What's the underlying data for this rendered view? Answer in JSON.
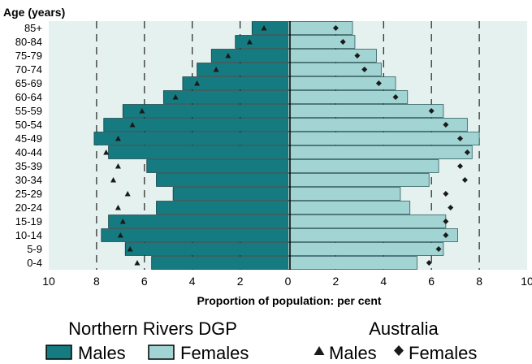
{
  "chart_data": {
    "type": "bar",
    "orientation": "horizontal-population-pyramid",
    "y_axis_title": "Age (years)",
    "xlabel": "Proportion of population: per cent",
    "xlim": [
      -10,
      10
    ],
    "x_ticks": [
      -10,
      -8,
      -6,
      -4,
      -2,
      0,
      2,
      4,
      6,
      8,
      10
    ],
    "x_tick_labels": [
      "10",
      "8",
      "6",
      "4",
      "2",
      "0",
      "2",
      "4",
      "6",
      "8",
      "10"
    ],
    "grid_lines_at": [
      -8,
      -6,
      -4,
      -2,
      2,
      4,
      6,
      8
    ],
    "categories": [
      "85+",
      "80-84",
      "75-79",
      "70-74",
      "65-69",
      "60-64",
      "55-59",
      "50-54",
      "45-49",
      "40-44",
      "35-39",
      "30-34",
      "25-29",
      "20-24",
      "15-19",
      "10-14",
      "5-9",
      "0-4"
    ],
    "series": [
      {
        "name": "Males",
        "group": "Northern Rivers DGP",
        "values": [
          1.5,
          2.2,
          3.2,
          3.8,
          4.4,
          5.2,
          6.9,
          7.7,
          8.1,
          7.5,
          5.9,
          5.5,
          4.8,
          5.5,
          7.5,
          7.8,
          6.8,
          5.7
        ]
      },
      {
        "name": "Females",
        "group": "Northern Rivers DGP",
        "values": [
          2.7,
          2.8,
          3.7,
          3.9,
          4.5,
          5.0,
          6.5,
          7.5,
          8.0,
          7.7,
          6.3,
          5.9,
          4.7,
          5.1,
          6.6,
          7.1,
          6.5,
          5.4
        ]
      },
      {
        "name": "Males",
        "group": "Australia",
        "marker": "triangle",
        "values": [
          1.0,
          1.6,
          2.5,
          3.0,
          3.8,
          4.7,
          6.1,
          6.5,
          7.1,
          7.6,
          7.1,
          7.3,
          6.7,
          7.1,
          6.9,
          7.0,
          6.6,
          6.3
        ]
      },
      {
        "name": "Females",
        "group": "Australia",
        "marker": "diamond",
        "values": [
          2.0,
          2.3,
          2.9,
          3.2,
          3.8,
          4.5,
          6.0,
          6.6,
          7.2,
          7.5,
          7.2,
          7.4,
          6.6,
          6.8,
          6.6,
          6.6,
          6.3,
          5.9
        ]
      }
    ],
    "legend": {
      "groups": [
        {
          "title": "Northern Rivers DGP",
          "items": [
            "Males",
            "Females"
          ]
        },
        {
          "title": "Australia",
          "items": [
            "Males",
            "Females"
          ]
        }
      ],
      "placement": "bottom"
    },
    "colors": {
      "males_bar": "#157b80",
      "females_bar": "#a1d4d3",
      "plot_bg": "#e4f1ef",
      "marker": "#1a1a1a",
      "grid": "#222222"
    }
  }
}
